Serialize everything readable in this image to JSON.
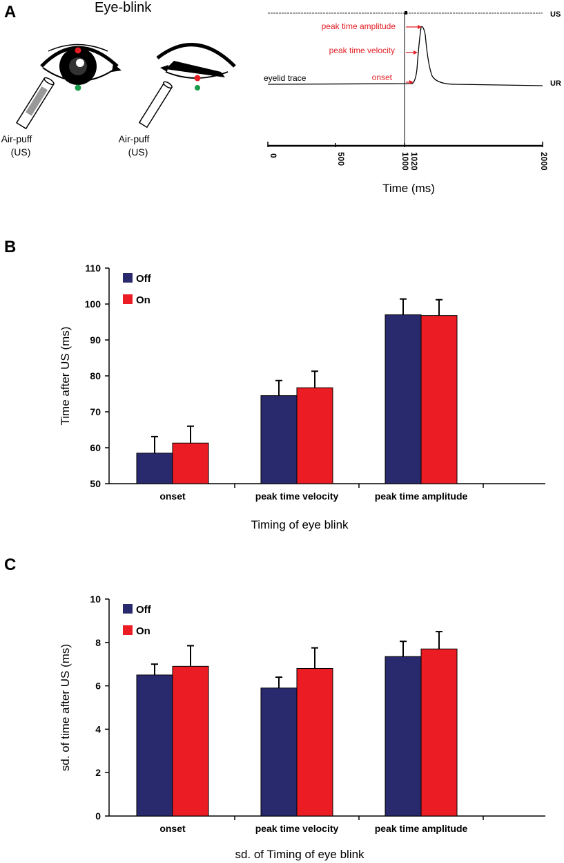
{
  "panel_letters": {
    "a": "A",
    "b": "B",
    "c": "C"
  },
  "panel_a": {
    "title": "Eye-blink",
    "airpuff_label_line1": "Air-puff",
    "airpuff_label_line2": "(US)",
    "trace": {
      "us_label": "US",
      "ur_label": "UR",
      "eyelid_label": "eyelid trace",
      "peak_amplitude_label": "peak time amplitude",
      "peak_velocity_label": "peak time velocity",
      "onset_label": "onset",
      "ticks": [
        "0",
        "500",
        "1000",
        "1020",
        "2000"
      ],
      "xlabel": "Time (ms)"
    },
    "colors": {
      "red": "#e31e24",
      "green": "#1a9a4b"
    }
  },
  "chart_data": [
    {
      "type": "bar",
      "panel": "B",
      "categories": [
        "onset",
        "peak time velocity",
        "peak time amplitude"
      ],
      "series": [
        {
          "name": "Off",
          "color": "#29296e",
          "values": [
            58.5,
            74.5,
            97
          ],
          "errors": [
            4.6,
            4.2,
            4.4
          ]
        },
        {
          "name": "On",
          "color": "#ec1c24",
          "values": [
            61.3,
            76.7,
            96.8
          ],
          "errors": [
            4.7,
            4.6,
            4.4
          ]
        }
      ],
      "ylim": [
        50,
        110
      ],
      "yticks": [
        "50",
        "60",
        "70",
        "80",
        "90",
        "100",
        "110"
      ],
      "ylabel": "Time after US (ms)",
      "xlabel": "Timing of eye blink",
      "legend": "top-left"
    },
    {
      "type": "bar",
      "panel": "C",
      "categories": [
        "onset",
        "peak time velocity",
        "peak time amplitude"
      ],
      "series": [
        {
          "name": "Off",
          "color": "#29296e",
          "values": [
            6.5,
            5.9,
            7.35
          ],
          "errors": [
            0.5,
            0.5,
            0.7
          ]
        },
        {
          "name": "On",
          "color": "#ec1c24",
          "values": [
            6.9,
            6.8,
            7.7
          ],
          "errors": [
            0.95,
            0.95,
            0.8
          ]
        }
      ],
      "ylim": [
        0,
        10
      ],
      "yticks": [
        "0",
        "2",
        "4",
        "6",
        "8",
        "10"
      ],
      "ylabel": "sd. of  time after US (ms)",
      "xlabel": "sd. of Timing of eye blink",
      "legend": "top-left"
    }
  ]
}
